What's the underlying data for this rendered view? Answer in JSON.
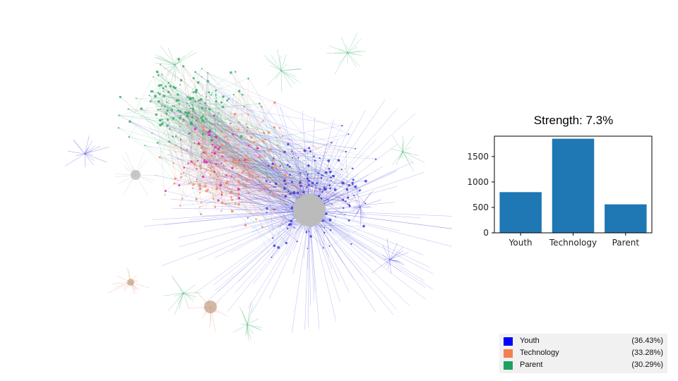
{
  "chart_data": {
    "type": "bar",
    "title": "Strength: 7.3%",
    "categories": [
      "Youth",
      "Technology",
      "Parent"
    ],
    "values": [
      800,
      1850,
      560
    ],
    "ylim": [
      0,
      1900
    ],
    "yticks": [
      0,
      500,
      1000,
      1500
    ],
    "bar_color": "#1f77b4",
    "xlabel": "",
    "ylabel": ""
  },
  "legend": [
    {
      "label": "Youth",
      "percent": "(36.43%)",
      "color": "#0000ff"
    },
    {
      "label": "Technology",
      "percent": "(33.28%)",
      "color": "#f08050"
    },
    {
      "label": "Parent",
      "percent": "(30.29%)",
      "color": "#20a060"
    }
  ],
  "network": {
    "description_colors": {
      "youth": "#3333dd",
      "technology": "#ee8866",
      "parent": "#33aa66",
      "hub": "#bbbbbb",
      "magenta": "#dd22aa"
    }
  }
}
